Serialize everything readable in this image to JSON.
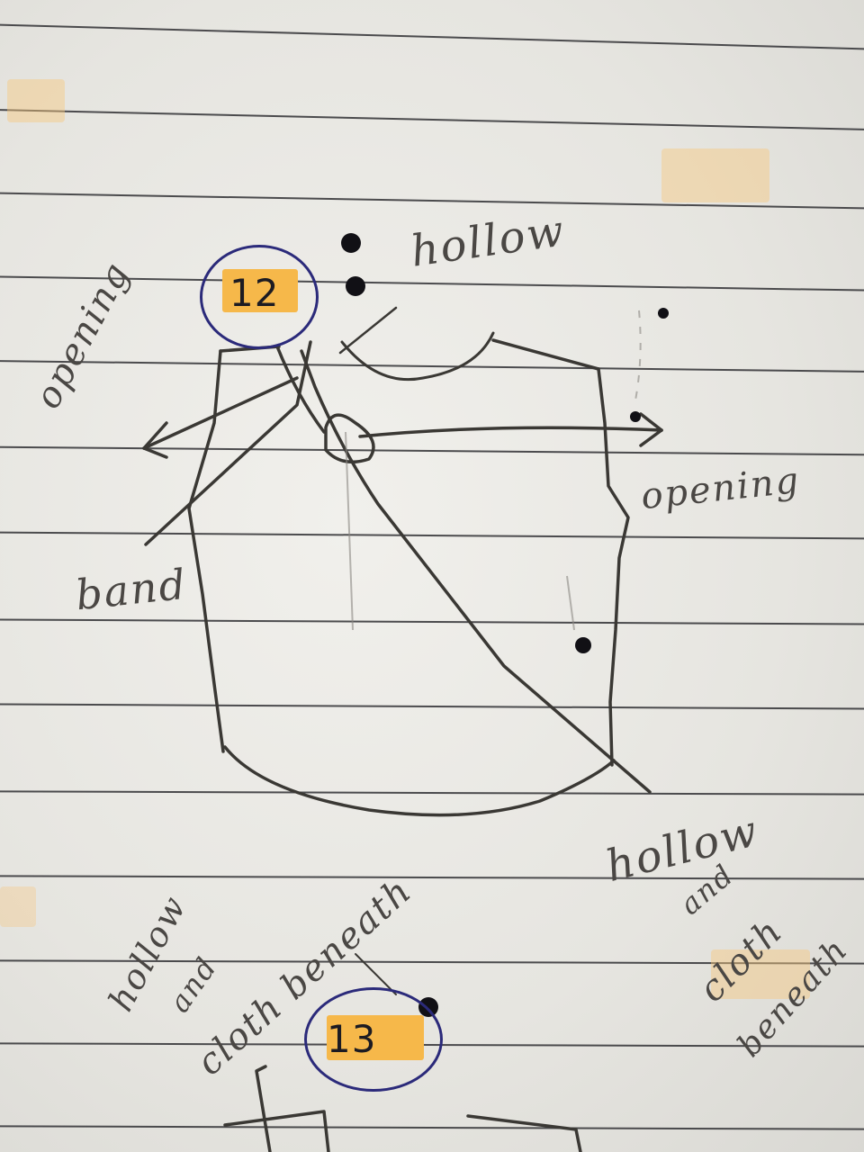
{
  "image": {
    "description": "Pencil sketch of a garment bodice on ruled notebook paper with handwritten annotations and circled item numbers.",
    "labels": {
      "hollow_top": "hollow",
      "opening_left": "opening",
      "opening_right": "opening",
      "band": "band",
      "hollow_bottom_left_1": "hollow",
      "hollow_bottom_left_2": "and",
      "hollow_bottom_left_3": "cloth beneath",
      "hollow_bottom_right_1": "hollow",
      "hollow_bottom_right_2": "and",
      "hollow_bottom_right_3": "cloth",
      "hollow_bottom_right_4": "beneath"
    },
    "markers": [
      {
        "number": "12"
      },
      {
        "number": "13"
      }
    ],
    "colors": {
      "paper": "#ecebe7",
      "pencil": "#3a3834",
      "ink_blue": "#2b2a7a",
      "highlight": "#f6b84a"
    }
  }
}
